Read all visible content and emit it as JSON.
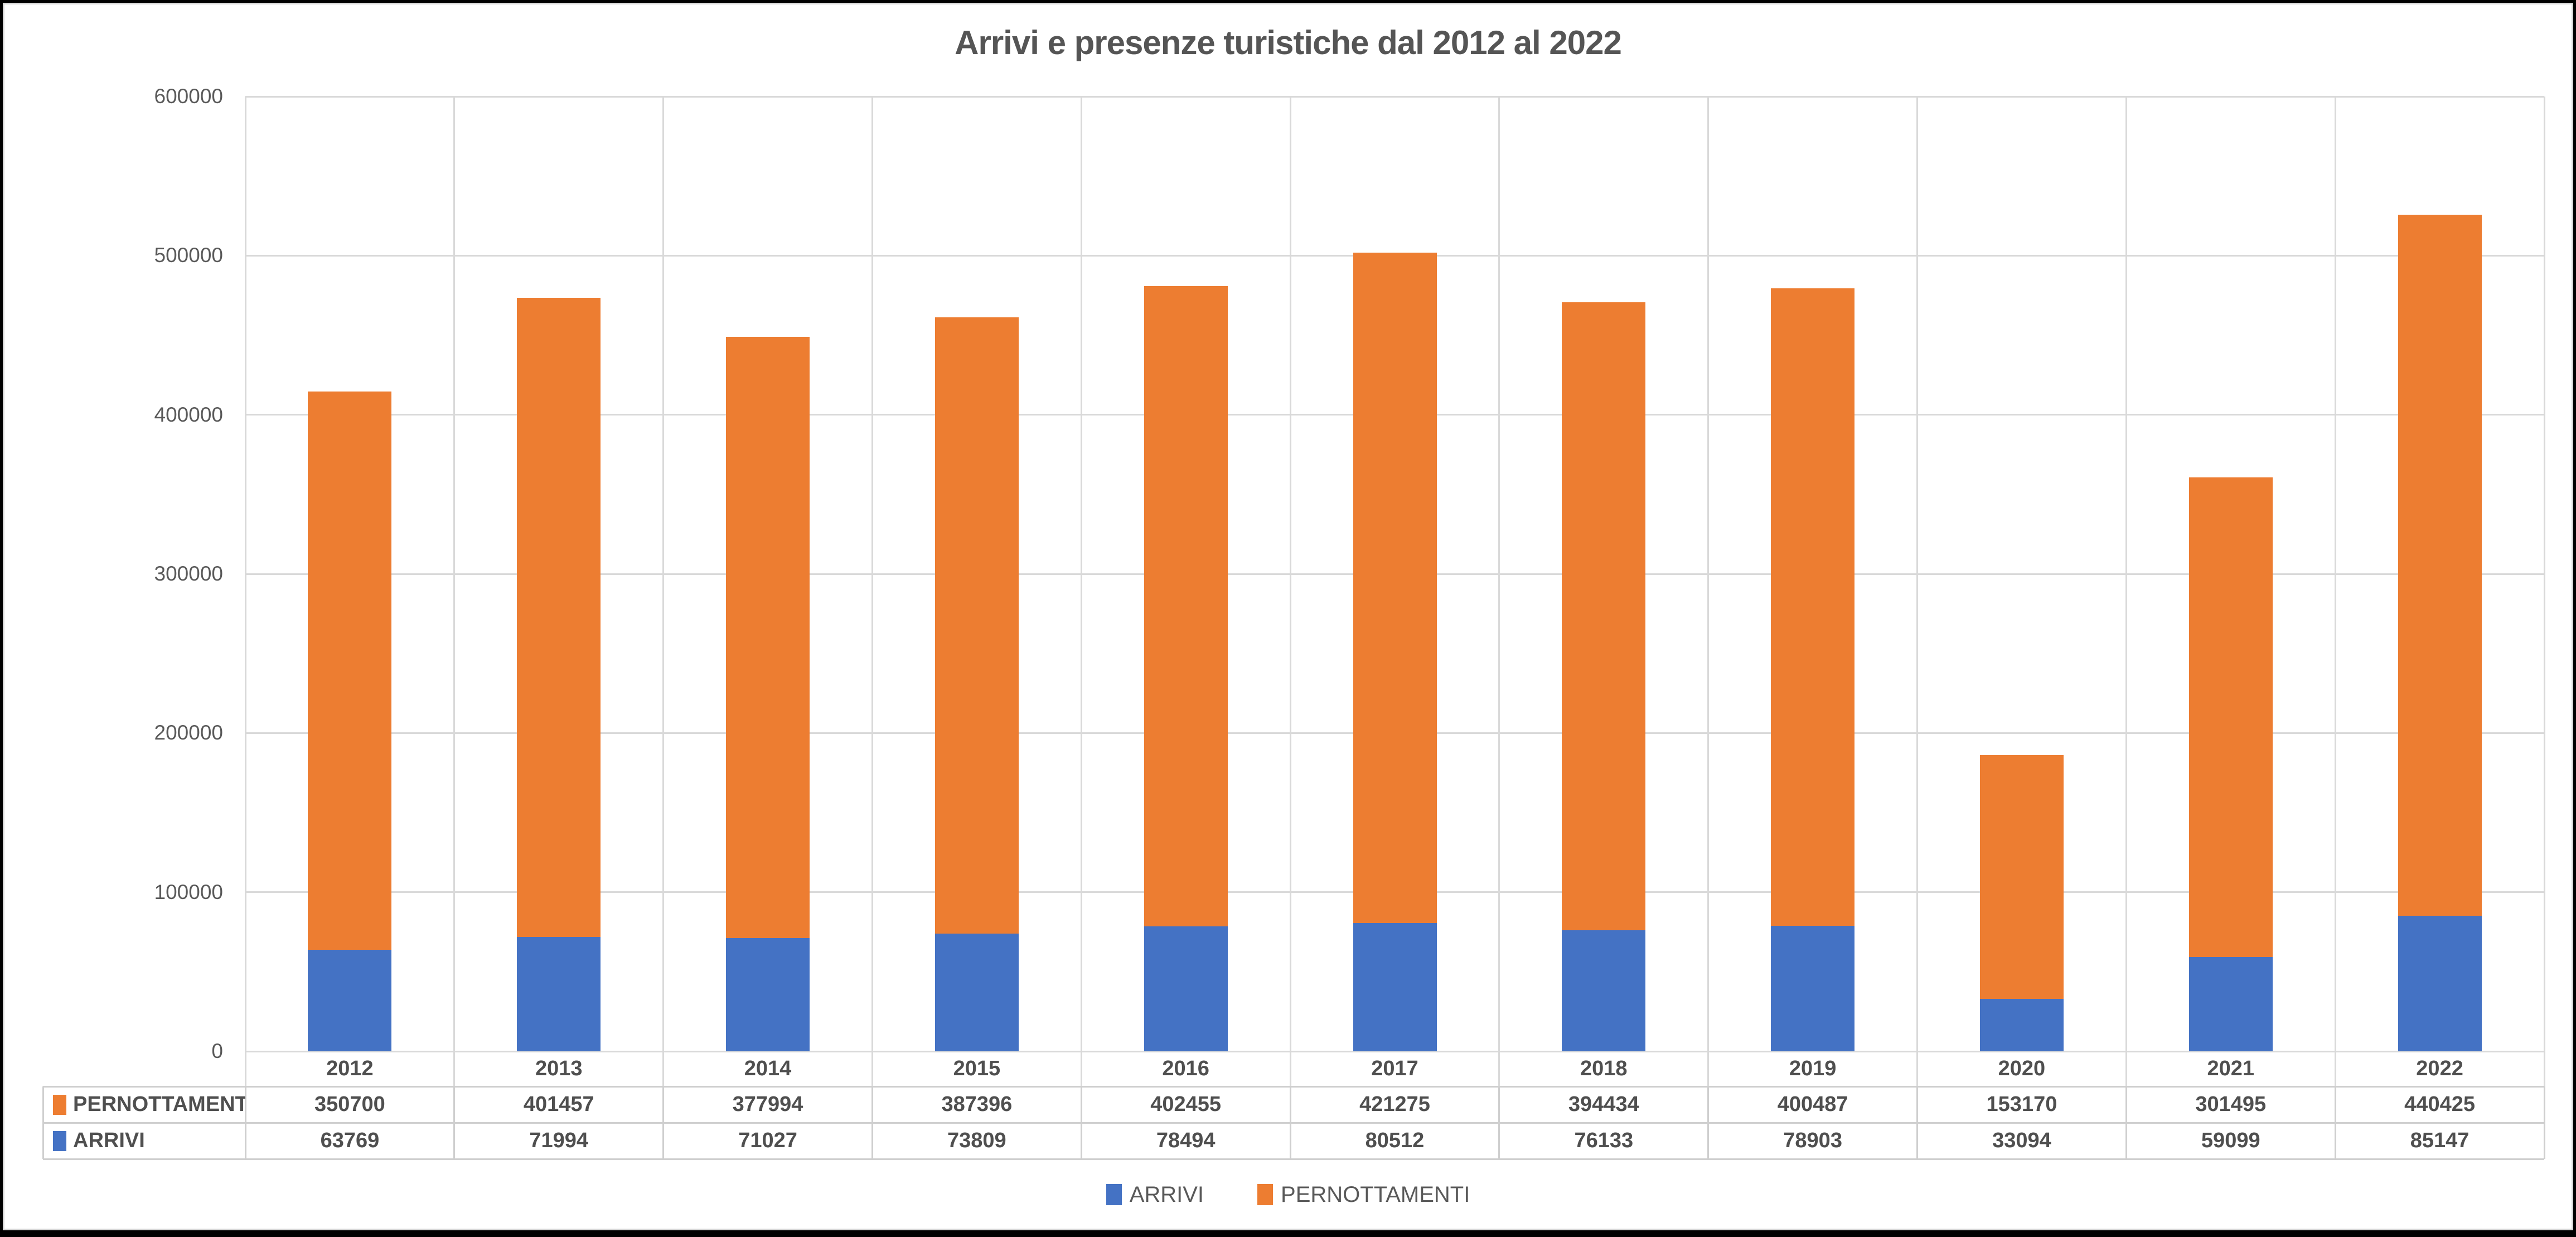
{
  "title": "Arrivi e presenze turistiche dal 2012 al 2022",
  "colors": {
    "arrivi_blue": "#4472C4",
    "pernottamenti_orange": "#ED7D31",
    "gridline": "#D9D9D9",
    "text_gray": "#595959",
    "frame_black": "#000000"
  },
  "chart_data": {
    "type": "bar",
    "stacked": true,
    "title": "Arrivi e presenze turistiche dal 2012 al 2022",
    "categories": [
      "2012",
      "2013",
      "2014",
      "2015",
      "2016",
      "2017",
      "2018",
      "2019",
      "2020",
      "2021",
      "2022"
    ],
    "series": [
      {
        "name": "ARRIVI",
        "color": "#4472C4",
        "values": [
          63769,
          71994,
          71027,
          73809,
          78494,
          80512,
          76133,
          78903,
          33094,
          59099,
          85147
        ]
      },
      {
        "name": "PERNOTTAMENTI",
        "color": "#ED7D31",
        "values": [
          350700,
          401457,
          377994,
          387396,
          402455,
          421275,
          394434,
          400487,
          153170,
          301495,
          440425
        ]
      }
    ],
    "ylim": [
      0,
      600000
    ],
    "ytick_step": 100000,
    "yticks": [
      "600000",
      "500000",
      "400000",
      "300000",
      "200000",
      "100000",
      "0"
    ],
    "grid": true,
    "legend_position": "bottom",
    "data_table_shown": true,
    "table_row_order": [
      "PERNOTTAMENTI",
      "ARRIVI"
    ]
  }
}
